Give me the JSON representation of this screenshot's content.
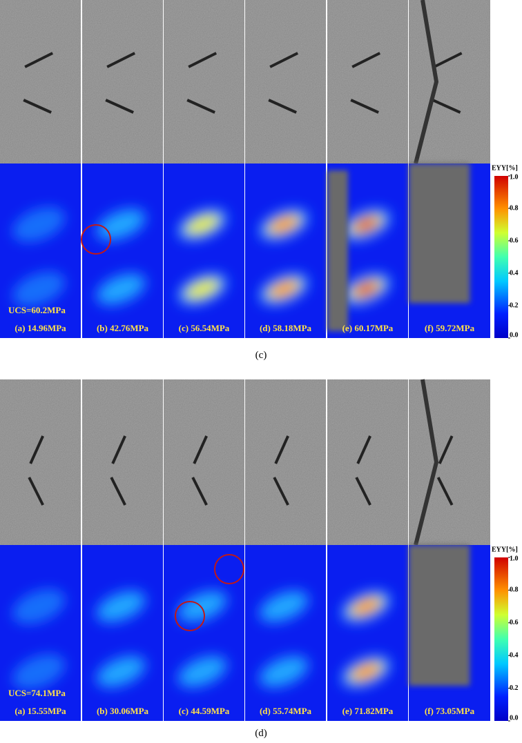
{
  "panels": [
    {
      "ucs": "UCS=60.2MPa",
      "stages": [
        "(a) 14.96MPa",
        "(b) 42.76MPa",
        "(c) 56.54MPa",
        "(d) 58.18MPa",
        "(e) 60.17MPa",
        "(f) 59.72MPa"
      ],
      "colorbar": {
        "title": "EYY[%]",
        "ticks": [
          {
            "value": 1,
            "label": "1.0"
          },
          {
            "value": 0.8,
            "label": "0.8"
          },
          {
            "value": 0.6,
            "label": "0.6"
          },
          {
            "value": 0.4,
            "label": "0.4"
          },
          {
            "value": 0.2,
            "label": "0.2"
          },
          {
            "value": 0,
            "label": "0.0"
          }
        ]
      },
      "caption": "(c)"
    },
    {
      "ucs": "UCS=74.1MPa",
      "stages": [
        "(a) 15.55MPa",
        "(b) 30.06MPa",
        "(c) 44.59MPa",
        "(d) 55.74MPa",
        "(e) 71.82MPa",
        "(f) 73.05MPa"
      ],
      "colorbar": {
        "title": "EYY[%]",
        "ticks": [
          {
            "value": 1,
            "label": "1.0"
          },
          {
            "value": 0.8,
            "label": "0.8"
          },
          {
            "value": 0.6,
            "label": "0.6"
          },
          {
            "value": 0.4,
            "label": "0.4"
          },
          {
            "value": 0.2,
            "label": "0.2"
          },
          {
            "value": 0,
            "label": "0.0"
          }
        ]
      },
      "caption": "(d)"
    }
  ]
}
